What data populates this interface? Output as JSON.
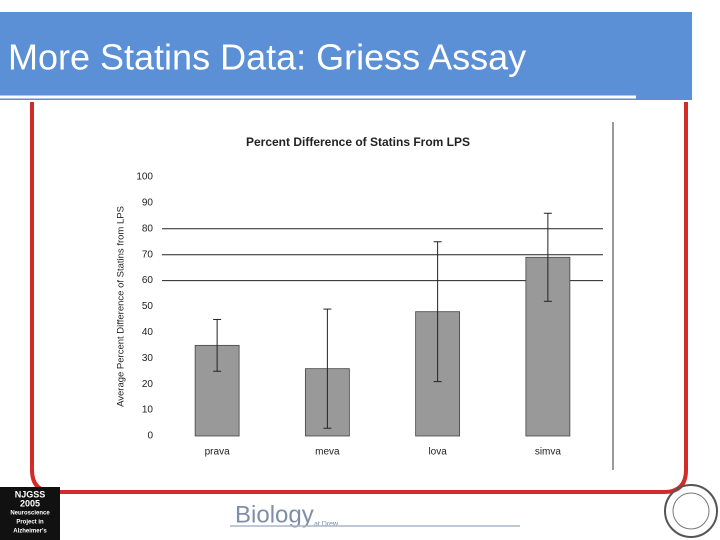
{
  "slide": {
    "title": "More Statins Data: Griess Assay",
    "footer": {
      "logo_left": [
        "NJGSS",
        "2005",
        "Neuroscience",
        "Project in",
        "Alzheimer's"
      ],
      "logo_center": "Biology",
      "logo_center_sub": "at Drew"
    }
  },
  "chart_data": {
    "type": "bar",
    "title": "Percent Difference of Statins From LPS",
    "y_label": "Average Percent Difference of Statins from LPS",
    "categories": [
      "prava",
      "meva",
      "lova",
      "simva"
    ],
    "values": [
      35,
      26,
      48,
      69
    ],
    "errors": [
      10,
      23,
      27,
      17
    ],
    "color": "#999999",
    "ylim": [
      0,
      100
    ],
    "yticks": [
      0,
      10,
      20,
      30,
      40,
      50,
      60,
      70,
      80,
      90,
      100
    ],
    "gridlines": [
      60,
      70,
      80
    ]
  }
}
